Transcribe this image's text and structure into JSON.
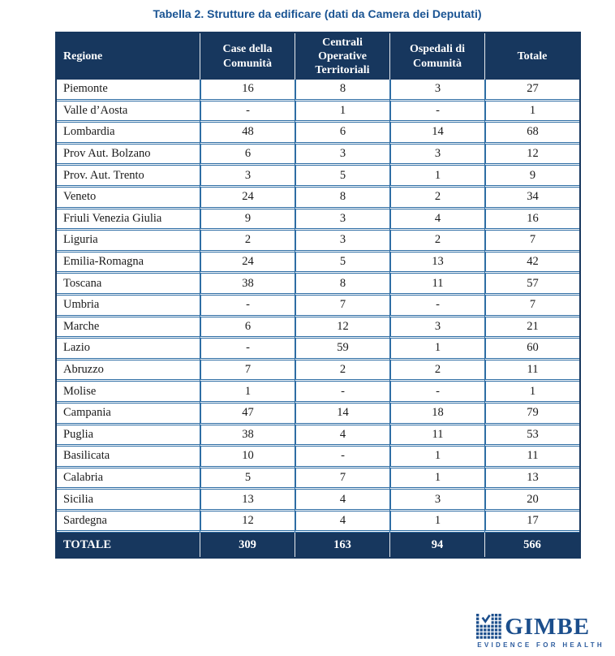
{
  "title": "Tabella 2. Strutture da edificare (dati da Camera dei Deputati)",
  "table": {
    "columns": [
      "Regione",
      "Case della Comunità",
      "Centrali Operative Territoriali",
      "Ospedali di Comunità",
      "Totale"
    ],
    "rows": [
      {
        "region": "Piemonte",
        "values": [
          "16",
          "8",
          "3",
          "27"
        ]
      },
      {
        "region": "Valle d’Aosta",
        "values": [
          "-",
          "1",
          "-",
          "1"
        ]
      },
      {
        "region": "Lombardia",
        "values": [
          "48",
          "6",
          "14",
          "68"
        ]
      },
      {
        "region": "Prov Aut. Bolzano",
        "values": [
          "6",
          "3",
          "3",
          "12"
        ]
      },
      {
        "region": "Prov. Aut. Trento",
        "values": [
          "3",
          "5",
          "1",
          "9"
        ]
      },
      {
        "region": "Veneto",
        "values": [
          "24",
          "8",
          "2",
          "34"
        ]
      },
      {
        "region": "Friuli Venezia Giulia",
        "values": [
          "9",
          "3",
          "4",
          "16"
        ]
      },
      {
        "region": "Liguria",
        "values": [
          "2",
          "3",
          "2",
          "7"
        ]
      },
      {
        "region": "Emilia-Romagna",
        "values": [
          "24",
          "5",
          "13",
          "42"
        ]
      },
      {
        "region": "Toscana",
        "values": [
          "38",
          "8",
          "11",
          "57"
        ]
      },
      {
        "region": "Umbria",
        "values": [
          "-",
          "7",
          "-",
          "7"
        ]
      },
      {
        "region": "Marche",
        "values": [
          "6",
          "12",
          "3",
          "21"
        ]
      },
      {
        "region": "Lazio",
        "values": [
          "-",
          "59",
          "1",
          "60"
        ]
      },
      {
        "region": "Abruzzo",
        "values": [
          "7",
          "2",
          "2",
          "11"
        ]
      },
      {
        "region": "Molise",
        "values": [
          "1",
          "-",
          "-",
          "1"
        ]
      },
      {
        "region": "Campania",
        "values": [
          "47",
          "14",
          "18",
          "79"
        ]
      },
      {
        "region": "Puglia",
        "values": [
          "38",
          "4",
          "11",
          "53"
        ]
      },
      {
        "region": "Basilicata",
        "values": [
          "10",
          "-",
          "1",
          "11"
        ]
      },
      {
        "region": "Calabria",
        "values": [
          "5",
          "7",
          "1",
          "13"
        ]
      },
      {
        "region": "Sicilia",
        "values": [
          "13",
          "4",
          "3",
          "20"
        ]
      },
      {
        "region": "Sardegna",
        "values": [
          "12",
          "4",
          "1",
          "17"
        ]
      }
    ],
    "total_row": {
      "label": "TOTALE",
      "values": [
        "309",
        "163",
        "94",
        "566"
      ]
    }
  },
  "logo": {
    "wordmark": "GIMBE",
    "tagline": "EVIDENCE FOR HEALTH"
  },
  "colors": {
    "header_bg": "#17375E",
    "cell_border": "#2E6DA4",
    "title_text": "#1A5493",
    "logo_blue": "#1B4E8C"
  }
}
